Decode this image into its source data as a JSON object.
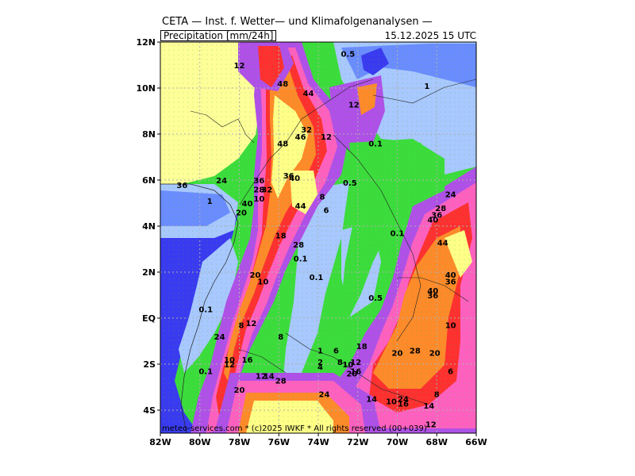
{
  "header": {
    "title": "CETA — Inst. f. Wetter— und Klimafolgenanalysen —",
    "parameter": "Precipitation [mm/24h]",
    "valid_time": "15.12.2025  15 UTC"
  },
  "footer": {
    "credit": "meteo-services.com * (c)2025 IWKF * All rights reserved (00+039)"
  },
  "axes": {
    "lat_ticks": [
      "12N",
      "10N",
      "8N",
      "6N",
      "4N",
      "2N",
      "EQ",
      "2S",
      "4S"
    ],
    "lon_ticks": [
      "82W",
      "80W",
      "78W",
      "76W",
      "74W",
      "72W",
      "70W",
      "68W",
      "66W"
    ],
    "lat_range": [
      -5,
      12
    ],
    "lon_range": [
      -82,
      -66
    ]
  },
  "colors": {
    "ocean": "#3a3af0",
    "light_blue": "#a8c8ff",
    "blue": "#6a8cff",
    "green": "#3cdc3c",
    "yellow": "#ffff88",
    "orange": "#ff8a2a",
    "red": "#ff3030",
    "magenta": "#c060ff",
    "violet": "#a040e0",
    "pink": "#ff60c0"
  },
  "map_values": [
    {
      "text": "12",
      "lon": -78,
      "lat": 11.0
    },
    {
      "text": "0.5",
      "lon": -72.5,
      "lat": 11.5
    },
    {
      "text": "1",
      "lon": -68.5,
      "lat": 10.1
    },
    {
      "text": "44",
      "lon": -74.5,
      "lat": 9.8
    },
    {
      "text": "48",
      "lon": -75.8,
      "lat": 10.2
    },
    {
      "text": "12",
      "lon": -72.2,
      "lat": 9.3
    },
    {
      "text": "32",
      "lon": -74.6,
      "lat": 8.2
    },
    {
      "text": "46",
      "lon": -74.9,
      "lat": 7.9
    },
    {
      "text": "12",
      "lon": -73.6,
      "lat": 7.9
    },
    {
      "text": "48",
      "lon": -75.8,
      "lat": 7.6
    },
    {
      "text": "0.1",
      "lon": -71.1,
      "lat": 7.6
    },
    {
      "text": "36",
      "lon": -80.9,
      "lat": 5.8
    },
    {
      "text": "24",
      "lon": -78.9,
      "lat": 6.0
    },
    {
      "text": "36",
      "lon": -77.0,
      "lat": 6.0
    },
    {
      "text": "28",
      "lon": -77.0,
      "lat": 5.6
    },
    {
      "text": "32",
      "lon": -76.6,
      "lat": 5.6
    },
    {
      "text": "36",
      "lon": -75.5,
      "lat": 6.2
    },
    {
      "text": "40",
      "lon": -75.2,
      "lat": 6.1
    },
    {
      "text": "0.5",
      "lon": -72.4,
      "lat": 5.9
    },
    {
      "text": "8",
      "lon": -73.8,
      "lat": 5.3
    },
    {
      "text": "1",
      "lon": -79.5,
      "lat": 5.1
    },
    {
      "text": "44",
      "lon": -74.9,
      "lat": 4.9
    },
    {
      "text": "6",
      "lon": -73.6,
      "lat": 4.7
    },
    {
      "text": "20",
      "lon": -77.9,
      "lat": 4.6
    },
    {
      "text": "40",
      "lon": -77.6,
      "lat": 5.0
    },
    {
      "text": "10",
      "lon": -77.0,
      "lat": 5.2
    },
    {
      "text": "18",
      "lon": -75.9,
      "lat": 3.6
    },
    {
      "text": "28",
      "lon": -75.0,
      "lat": 3.2
    },
    {
      "text": "0.1",
      "lon": -70.0,
      "lat": 3.7
    },
    {
      "text": "24",
      "lon": -67.3,
      "lat": 5.4
    },
    {
      "text": "28",
      "lon": -67.8,
      "lat": 4.8
    },
    {
      "text": "36",
      "lon": -68.0,
      "lat": 4.5
    },
    {
      "text": "40",
      "lon": -68.2,
      "lat": 4.3
    },
    {
      "text": "44",
      "lon": -67.7,
      "lat": 3.3
    },
    {
      "text": "0.1",
      "lon": -74.9,
      "lat": 2.6
    },
    {
      "text": "20",
      "lon": -77.2,
      "lat": 1.9
    },
    {
      "text": "10",
      "lon": -76.8,
      "lat": 1.6
    },
    {
      "text": "0.1",
      "lon": -74.1,
      "lat": 1.8
    },
    {
      "text": "40",
      "lon": -67.3,
      "lat": 1.9
    },
    {
      "text": "36",
      "lon": -67.3,
      "lat": 1.6
    },
    {
      "text": "40",
      "lon": -68.2,
      "lat": 1.2
    },
    {
      "text": "36",
      "lon": -68.2,
      "lat": 1.0
    },
    {
      "text": "0.5",
      "lon": -71.1,
      "lat": 0.9
    },
    {
      "text": "0.1",
      "lon": -79.7,
      "lat": 0.4
    },
    {
      "text": "8",
      "lon": -77.9,
      "lat": -0.3
    },
    {
      "text": "12",
      "lon": -77.4,
      "lat": -0.2
    },
    {
      "text": "10",
      "lon": -67.3,
      "lat": -0.3
    },
    {
      "text": "8",
      "lon": -75.9,
      "lat": -0.8
    },
    {
      "text": "24",
      "lon": -79.0,
      "lat": -0.8
    },
    {
      "text": "1",
      "lon": -73.9,
      "lat": -1.4
    },
    {
      "text": "6",
      "lon": -73.1,
      "lat": -1.4
    },
    {
      "text": "18",
      "lon": -71.8,
      "lat": -1.2
    },
    {
      "text": "20",
      "lon": -70.0,
      "lat": -1.5
    },
    {
      "text": "28",
      "lon": -69.1,
      "lat": -1.4
    },
    {
      "text": "20",
      "lon": -68.1,
      "lat": -1.5
    },
    {
      "text": "10",
      "lon": -78.5,
      "lat": -1.8
    },
    {
      "text": "12",
      "lon": -78.5,
      "lat": -2.0
    },
    {
      "text": "16",
      "lon": -77.6,
      "lat": -1.8
    },
    {
      "text": "2",
      "lon": -73.9,
      "lat": -1.9
    },
    {
      "text": "4",
      "lon": -73.9,
      "lat": -2.1
    },
    {
      "text": "8",
      "lon": -72.9,
      "lat": -1.9
    },
    {
      "text": "10",
      "lon": -72.5,
      "lat": -2.0
    },
    {
      "text": "12",
      "lon": -72.1,
      "lat": -1.9
    },
    {
      "text": "0.1",
      "lon": -79.7,
      "lat": -2.3
    },
    {
      "text": "6",
      "lon": -67.3,
      "lat": -2.3
    },
    {
      "text": "12",
      "lon": -76.9,
      "lat": -2.5
    },
    {
      "text": "14",
      "lon": -76.5,
      "lat": -2.5
    },
    {
      "text": "20",
      "lon": -72.3,
      "lat": -2.4
    },
    {
      "text": "16",
      "lon": -72.1,
      "lat": -2.3
    },
    {
      "text": "28",
      "lon": -75.9,
      "lat": -2.7
    },
    {
      "text": "20",
      "lon": -78.0,
      "lat": -3.1
    },
    {
      "text": "24",
      "lon": -73.7,
      "lat": -3.3
    },
    {
      "text": "8",
      "lon": -68.0,
      "lat": -3.3
    },
    {
      "text": "14",
      "lon": -71.3,
      "lat": -3.5
    },
    {
      "text": "10",
      "lon": -70.3,
      "lat": -3.6
    },
    {
      "text": "24",
      "lon": -69.7,
      "lat": -3.5
    },
    {
      "text": "16",
      "lon": -69.7,
      "lat": -3.7
    },
    {
      "text": "14",
      "lon": -68.4,
      "lat": -3.8
    },
    {
      "text": "12",
      "lon": -68.3,
      "lat": -4.6
    }
  ]
}
